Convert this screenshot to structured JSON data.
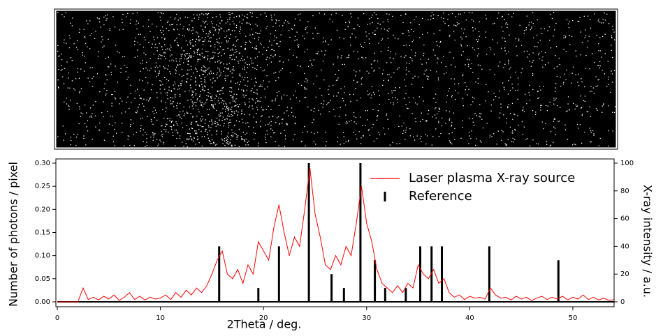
{
  "chart_data": {
    "type": "line",
    "xlabel": "2Theta / deg.",
    "ylabel": "Number of photons / pixel",
    "y2label": "X-ray intensity / a.u.",
    "xlim": [
      0,
      54
    ],
    "xticks": [
      0,
      10,
      20,
      30,
      40,
      50
    ],
    "ylim": [
      0,
      0.3
    ],
    "yticks": [
      {
        "value": 0,
        "label": "0.00"
      },
      {
        "value": 0.05,
        "label": "0.05"
      },
      {
        "value": 0.1,
        "label": "0.10"
      },
      {
        "value": 0.15,
        "label": "0.15"
      },
      {
        "value": 0.2,
        "label": "0.20"
      },
      {
        "value": 0.25,
        "label": "0.25"
      },
      {
        "value": 0.3,
        "label": "0.30"
      }
    ],
    "y2lim": [
      0,
      100
    ],
    "y2ticks": [
      0,
      20,
      40,
      60,
      80,
      100
    ],
    "legend": "top-right",
    "series": [
      {
        "name": "Laser plasma X-ray source",
        "color": "#ff0000",
        "kind": "line",
        "x": [
          0,
          0.5,
          1,
          1.5,
          2,
          2.5,
          3,
          3.5,
          4,
          4.5,
          5,
          5.5,
          6,
          6.5,
          7,
          7.5,
          8,
          8.5,
          9,
          9.5,
          10,
          10.5,
          11,
          11.5,
          12,
          12.5,
          13,
          13.5,
          14,
          14.5,
          15,
          15.5,
          16,
          16.5,
          17,
          17.5,
          18,
          18.5,
          19,
          19.5,
          20,
          20.5,
          21,
          21.5,
          22,
          22.5,
          23,
          23.5,
          24,
          24.5,
          25,
          25.5,
          26,
          26.5,
          27,
          27.5,
          28,
          28.5,
          29,
          29.5,
          30,
          30.5,
          31,
          31.5,
          32,
          32.5,
          33,
          33.5,
          34,
          34.5,
          35,
          35.5,
          36,
          36.5,
          37,
          37.5,
          38,
          38.5,
          39,
          39.5,
          40,
          40.5,
          41,
          41.5,
          42,
          42.5,
          43,
          43.5,
          44,
          44.5,
          45,
          45.5,
          46,
          46.5,
          47,
          47.5,
          48,
          48.5,
          49,
          49.5,
          50,
          50.5,
          51,
          51.5,
          52,
          52.5,
          53,
          53.5,
          54
        ],
        "values": [
          0,
          0,
          0,
          0,
          0,
          0.03,
          0.005,
          0.01,
          0.004,
          0.012,
          0.006,
          0.015,
          0.003,
          0.01,
          0.02,
          0.005,
          0.012,
          0.004,
          0.01,
          0.006,
          0.008,
          0.015,
          0.005,
          0.02,
          0.01,
          0.025,
          0.015,
          0.03,
          0.02,
          0.035,
          0.06,
          0.09,
          0.11,
          0.06,
          0.05,
          0.07,
          0.04,
          0.08,
          0.06,
          0.13,
          0.11,
          0.09,
          0.16,
          0.21,
          0.15,
          0.1,
          0.14,
          0.12,
          0.2,
          0.29,
          0.19,
          0.14,
          0.08,
          0.07,
          0.1,
          0.08,
          0.12,
          0.1,
          0.17,
          0.25,
          0.17,
          0.13,
          0.07,
          0.04,
          0.03,
          0.02,
          0.035,
          0.02,
          0.04,
          0.03,
          0.08,
          0.06,
          0.05,
          0.07,
          0.04,
          0.05,
          0.02,
          0.01,
          0.015,
          0.005,
          0.012,
          0.008,
          0.01,
          0.006,
          0.03,
          0.015,
          0.008,
          0.01,
          0.004,
          0.012,
          0.006,
          0.01,
          0.003,
          0.008,
          0.012,
          0.005,
          0.01,
          0.006,
          0.012,
          0.004,
          0.01,
          0.006,
          0.015,
          0.005,
          0.01,
          0.004,
          0.008,
          0.003,
          0.005
        ]
      },
      {
        "name": "Reference",
        "color": "#000000",
        "kind": "stick",
        "axis": "y2",
        "x": [
          15.7,
          19.5,
          21.5,
          24.4,
          26.6,
          27.8,
          29.4,
          30.8,
          31.8,
          33.8,
          35.2,
          36.3,
          37.3,
          41.9,
          48.6
        ],
        "values": [
          40,
          10,
          40,
          100,
          20,
          10,
          100,
          30,
          10,
          10,
          40,
          40,
          40,
          40,
          30
        ]
      }
    ]
  }
}
